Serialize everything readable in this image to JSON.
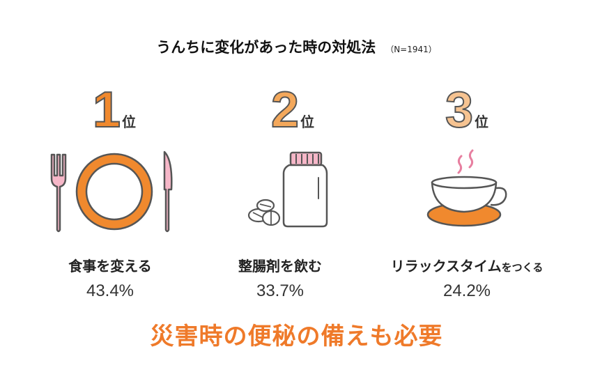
{
  "title": "うんちに変化があった時の対処法",
  "sample": "（N=1941）",
  "rank_suffix": "位",
  "items": [
    {
      "rank": "1",
      "label": "食事を変える",
      "label_suffix": "",
      "percent": "43.4%",
      "color": "#f0892e",
      "icon": "plate-fork-knife-icon"
    },
    {
      "rank": "2",
      "label": "整腸剤を飲む",
      "label_suffix": "",
      "percent": "33.7%",
      "color": "#f4a85b",
      "icon": "medicine-bottle-icon"
    },
    {
      "rank": "3",
      "label": "リラックスタイム",
      "label_suffix": "をつくる",
      "percent": "24.2%",
      "color": "#f6c391",
      "icon": "coffee-cup-icon"
    }
  ],
  "footer": "災害時の便秘の備えも必要",
  "colors": {
    "accent": "#ef7a2a",
    "pink": "#f6b7c8",
    "outline": "#555555"
  }
}
